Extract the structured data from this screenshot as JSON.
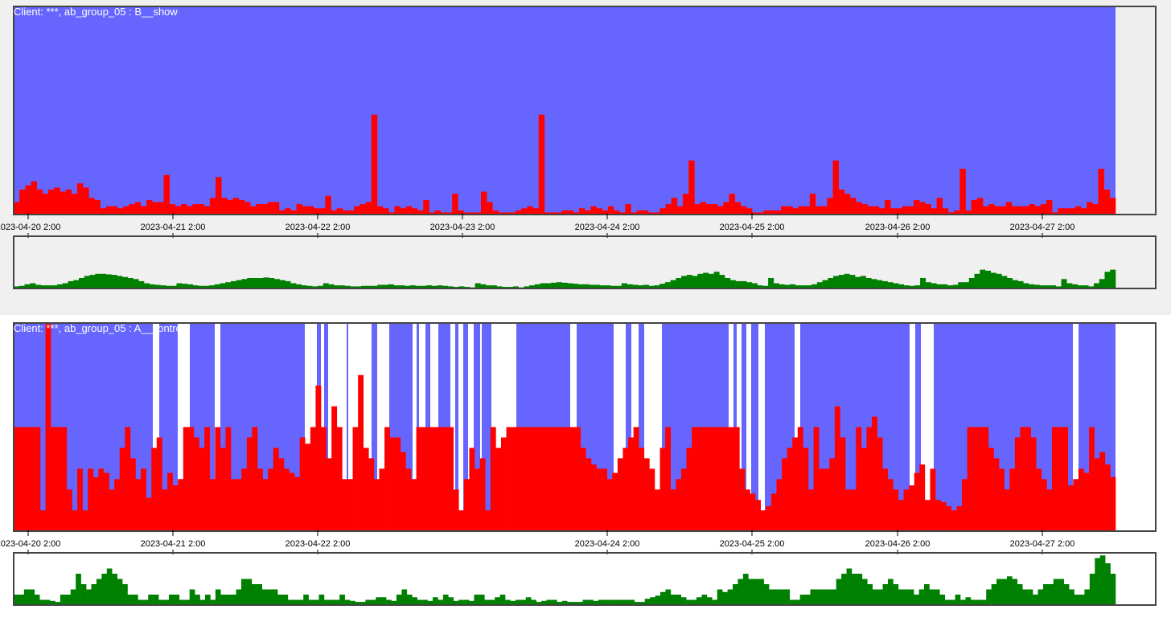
{
  "colors": {
    "panel_bg_top": "#f0f0f0",
    "panel_bg_bottom": "#ffffff",
    "share_fill": "#6666ff",
    "red_series": "#ff0000",
    "volume_series": "#008000",
    "frame": "#444444"
  },
  "chart_data": [
    {
      "type": "bar",
      "title": "Client: ***, ab_group_05 : B__show",
      "x_tick_labels": [
        "2023-04-20 2:00",
        "2023-04-21 2:00",
        "2023-04-22 2:00",
        "2023-04-23 2:00",
        "2023-04-24 2:00",
        "2023-04-25 2:00",
        "2023-04-26 2:00",
        "2023-04-27 2:00"
      ],
      "series": [
        {
          "values": [
            0.06,
            0.12,
            0.14,
            0.16,
            0.12,
            0.1,
            0.12,
            0.13,
            0.11,
            0.12,
            0.1,
            0.15,
            0.13,
            0.08,
            0.07,
            0.03,
            0.04,
            0.04,
            0.03,
            0.04,
            0.05,
            0.06,
            0.04,
            0.07,
            0.06,
            0.06,
            0.19,
            0.05,
            0.04,
            0.05,
            0.04,
            0.05,
            0.05,
            0.04,
            0.08,
            0.18,
            0.08,
            0.07,
            0.08,
            0.07,
            0.06,
            0.04,
            0.05,
            0.05,
            0.06,
            0.06,
            0.02,
            0.03,
            0.02,
            0.05,
            0.04,
            0.04,
            0.03,
            0.03,
            0.09,
            0.02,
            0.03,
            0.02,
            0.02,
            0.04,
            0.05,
            0.06,
            0.48,
            0.04,
            0.03,
            0.01,
            0.04,
            0.03,
            0.04,
            0.03,
            0.02,
            0.07,
            0.01,
            0.02,
            0.01,
            0.01,
            0.1,
            0.02,
            0.01,
            0.01,
            0.01,
            0.11,
            0.06,
            0.02,
            0.01,
            0.01,
            0.01,
            0.02,
            0.03,
            0.04,
            0.03,
            0.48,
            0.01,
            0.01,
            0.01,
            0.02,
            0.02,
            0.01,
            0.03,
            0.02,
            0.04,
            0.03,
            0.02,
            0.04,
            0.02,
            0.01,
            0.05,
            0.01,
            0.02,
            0.02,
            0.01,
            0.01,
            0.03,
            0.05,
            0.08,
            0.04,
            0.1,
            0.26,
            0.05,
            0.06,
            0.05,
            0.05,
            0.04,
            0.06,
            0.1,
            0.06,
            0.04,
            0.03,
            0.01,
            0.01,
            0.02,
            0.02,
            0.02,
            0.04,
            0.04,
            0.03,
            0.04,
            0.04,
            0.1,
            0.04,
            0.04,
            0.08,
            0.26,
            0.12,
            0.1,
            0.08,
            0.06,
            0.05,
            0.04,
            0.04,
            0.03,
            0.07,
            0.03,
            0.03,
            0.04,
            0.04,
            0.07,
            0.06,
            0.05,
            0.03,
            0.08,
            0.03,
            0.01,
            0.02,
            0.22,
            0.02,
            0.07,
            0.08,
            0.04,
            0.05,
            0.04,
            0.04,
            0.06,
            0.04,
            0.04,
            0.04,
            0.05,
            0.04,
            0.05,
            0.07,
            0.01,
            0.03,
            0.03,
            0.03,
            0.04,
            0.03,
            0.06,
            0.05,
            0.22,
            0.12,
            0.08
          ]
        },
        {
          "values": [
            0.04,
            0.05,
            0.08,
            0.1,
            0.07,
            0.06,
            0.06,
            0.06,
            0.08,
            0.1,
            0.14,
            0.16,
            0.2,
            0.24,
            0.26,
            0.28,
            0.28,
            0.27,
            0.26,
            0.24,
            0.22,
            0.2,
            0.18,
            0.14,
            0.1,
            0.08,
            0.07,
            0.06,
            0.05,
            0.05,
            0.1,
            0.09,
            0.08,
            0.06,
            0.05,
            0.05,
            0.06,
            0.08,
            0.1,
            0.12,
            0.14,
            0.16,
            0.18,
            0.2,
            0.2,
            0.2,
            0.21,
            0.2,
            0.18,
            0.16,
            0.14,
            0.1,
            0.08,
            0.06,
            0.05,
            0.04,
            0.05,
            0.1,
            0.08,
            0.06,
            0.06,
            0.05,
            0.04,
            0.04,
            0.05,
            0.05,
            0.05,
            0.07,
            0.07,
            0.08,
            0.06,
            0.06,
            0.05,
            0.06,
            0.05,
            0.05,
            0.06,
            0.05,
            0.06,
            0.05,
            0.04,
            0.03,
            0.04,
            0.03,
            0.02,
            0.1,
            0.08,
            0.06,
            0.06,
            0.04,
            0.03,
            0.03,
            0.04,
            0.02,
            0.04,
            0.06,
            0.08,
            0.1,
            0.1,
            0.11,
            0.12,
            0.11,
            0.1,
            0.09,
            0.08,
            0.08,
            0.07,
            0.07,
            0.06,
            0.06,
            0.05,
            0.05,
            0.1,
            0.08,
            0.07,
            0.06,
            0.07,
            0.05,
            0.06,
            0.09,
            0.12,
            0.16,
            0.2,
            0.24,
            0.26,
            0.24,
            0.28,
            0.3,
            0.28,
            0.32,
            0.26,
            0.2,
            0.16,
            0.14,
            0.14,
            0.12,
            0.1,
            0.06,
            0.05,
            0.2,
            0.1,
            0.08,
            0.07,
            0.08,
            0.06,
            0.06,
            0.06,
            0.08,
            0.12,
            0.16,
            0.2,
            0.24,
            0.26,
            0.28,
            0.26,
            0.22,
            0.24,
            0.2,
            0.18,
            0.16,
            0.14,
            0.12,
            0.1,
            0.08,
            0.06,
            0.05,
            0.06,
            0.2,
            0.12,
            0.1,
            0.08,
            0.08,
            0.06,
            0.07,
            0.12,
            0.12,
            0.2,
            0.28,
            0.36,
            0.34,
            0.3,
            0.28,
            0.24,
            0.2,
            0.16,
            0.14,
            0.1,
            0.08,
            0.07,
            0.06,
            0.06,
            0.06,
            0.04,
            0.18,
            0.1,
            0.08,
            0.06,
            0.06,
            0.04,
            0.1,
            0.18,
            0.32,
            0.36
          ]
        }
      ]
    },
    {
      "type": "bar",
      "title": "Client: ***, ab_group_05 : A__control",
      "x_tick_labels": [
        "2023-04-20 2:00",
        "2023-04-21 2:00",
        "2023-04-22 2:00",
        "2023-04-24 2:00",
        "2023-04-25 2:00",
        "2023-04-26 2:00",
        "2023-04-27 2:00"
      ],
      "series": [
        {
          "values": [
            0.5,
            0.5,
            0.5,
            0.5,
            0.5,
            0.1,
            1.0,
            0.5,
            0.5,
            0.5,
            0.2,
            0.1,
            0.3,
            0.1,
            0.3,
            0.26,
            0.3,
            0.28,
            0.2,
            0.25,
            0.4,
            0.5,
            0.35,
            0.25,
            0.3,
            0.16,
            0.4,
            0.45,
            0.2,
            0.28,
            0.22,
            0.25,
            0.5,
            0.5,
            0.45,
            0.4,
            0.5,
            0.25,
            0.5,
            0.4,
            0.5,
            0.25,
            0.25,
            0.3,
            0.45,
            0.5,
            0.3,
            0.25,
            0.3,
            0.4,
            0.35,
            0.3,
            0.28,
            0.26,
            0.45,
            0.42,
            0.5,
            0.7,
            0.5,
            0.35,
            0.6,
            0.5,
            0.25,
            0.25,
            0.5,
            0.75,
            0.4,
            0.35,
            0.25,
            0.3,
            0.5,
            0.45,
            0.45,
            0.38,
            0.3,
            0.25,
            0.5,
            0.5,
            0.5,
            0.5,
            0.5,
            0.5,
            0.5,
            0.2,
            0.1,
            0.25,
            0.4,
            0.3,
            0.35,
            0.1,
            0.5,
            0.4,
            0.45,
            0.5,
            0.5,
            0.5,
            0.5,
            0.5,
            0.5,
            0.5,
            0.5,
            0.5,
            0.5,
            0.5,
            0.5,
            0.5,
            0.5,
            0.4,
            0.35,
            0.32,
            0.3,
            0.3,
            0.25,
            0.28,
            0.35,
            0.4,
            0.45,
            0.5,
            0.4,
            0.35,
            0.3,
            0.2,
            0.4,
            0.5,
            0.2,
            0.25,
            0.3,
            0.4,
            0.5,
            0.5,
            0.5,
            0.5,
            0.5,
            0.5,
            0.5,
            0.5,
            0.5,
            0.3,
            0.2,
            0.18,
            0.15,
            0.1,
            0.12,
            0.18,
            0.25,
            0.35,
            0.4,
            0.45,
            0.5,
            0.4,
            0.2,
            0.5,
            0.3,
            0.3,
            0.35,
            0.6,
            0.45,
            0.2,
            0.2,
            0.5,
            0.4,
            0.5,
            0.55,
            0.45,
            0.3,
            0.25,
            0.2,
            0.15,
            0.2,
            0.22,
            0.28,
            0.32,
            0.15,
            0.3,
            0.15,
            0.14,
            0.12,
            0.1,
            0.12,
            0.25,
            0.5,
            0.5,
            0.5,
            0.5,
            0.4,
            0.35,
            0.3,
            0.2,
            0.3,
            0.45,
            0.5,
            0.5,
            0.45,
            0.3,
            0.25,
            0.2,
            0.5,
            0.5,
            0.5,
            0.22,
            0.25,
            0.3,
            0.28,
            0.5,
            0.35,
            0.38,
            0.32,
            0.26
          ]
        },
        {
          "values": [
            0.2,
            0.2,
            0.3,
            0.3,
            0.2,
            0.1,
            0.1,
            0.08,
            0.06,
            0.2,
            0.2,
            0.3,
            0.6,
            0.4,
            0.3,
            0.4,
            0.5,
            0.6,
            0.7,
            0.6,
            0.5,
            0.4,
            0.2,
            0.2,
            0.1,
            0.1,
            0.2,
            0.2,
            0.1,
            0.1,
            0.2,
            0.2,
            0.1,
            0.1,
            0.3,
            0.2,
            0.1,
            0.2,
            0.1,
            0.3,
            0.2,
            0.2,
            0.2,
            0.3,
            0.5,
            0.5,
            0.4,
            0.4,
            0.3,
            0.3,
            0.3,
            0.2,
            0.2,
            0.1,
            0.1,
            0.1,
            0.2,
            0.1,
            0.1,
            0.2,
            0.1,
            0.1,
            0.1,
            0.2,
            0.1,
            0.08,
            0.06,
            0.06,
            0.1,
            0.1,
            0.15,
            0.15,
            0.1,
            0.08,
            0.2,
            0.3,
            0.2,
            0.15,
            0.1,
            0.1,
            0.08,
            0.15,
            0.1,
            0.2,
            0.15,
            0.08,
            0.1,
            0.1,
            0.08,
            0.2,
            0.2,
            0.1,
            0.1,
            0.15,
            0.2,
            0.1,
            0.08,
            0.1,
            0.1,
            0.15,
            0.1,
            0.06,
            0.08,
            0.1,
            0.1,
            0.06,
            0.08,
            0.06,
            0.06,
            0.06,
            0.1,
            0.1,
            0.08,
            0.1,
            0.1,
            0.1,
            0.1,
            0.1,
            0.1,
            0.1,
            0.06,
            0.06,
            0.12,
            0.15,
            0.18,
            0.25,
            0.3,
            0.2,
            0.2,
            0.15,
            0.1,
            0.1,
            0.15,
            0.2,
            0.15,
            0.1,
            0.3,
            0.25,
            0.3,
            0.4,
            0.5,
            0.6,
            0.5,
            0.5,
            0.5,
            0.4,
            0.3,
            0.3,
            0.3,
            0.3,
            0.1,
            0.1,
            0.2,
            0.2,
            0.3,
            0.3,
            0.3,
            0.3,
            0.3,
            0.5,
            0.6,
            0.7,
            0.6,
            0.6,
            0.5,
            0.4,
            0.3,
            0.3,
            0.4,
            0.5,
            0.4,
            0.3,
            0.3,
            0.3,
            0.2,
            0.3,
            0.4,
            0.3,
            0.3,
            0.2,
            0.1,
            0.1,
            0.2,
            0.1,
            0.15,
            0.1,
            0.1,
            0.1,
            0.3,
            0.4,
            0.5,
            0.5,
            0.55,
            0.5,
            0.4,
            0.3,
            0.3,
            0.2,
            0.3,
            0.4,
            0.4,
            0.5,
            0.5,
            0.4,
            0.3,
            0.2,
            0.2,
            0.3,
            0.6,
            0.9,
            0.95,
            0.8,
            0.6
          ]
        }
      ]
    }
  ]
}
